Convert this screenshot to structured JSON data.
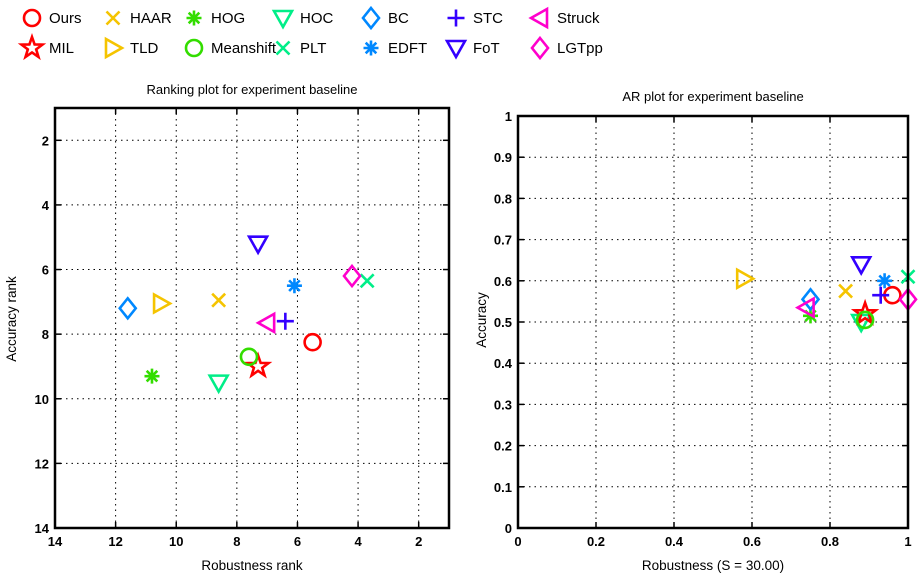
{
  "legend": [
    {
      "name": "Ours",
      "marker": "circle",
      "color": "#ff0000"
    },
    {
      "name": "HAAR",
      "marker": "x",
      "color": "#f5c400"
    },
    {
      "name": "HOG",
      "marker": "asterisk",
      "color": "#33dd00"
    },
    {
      "name": "HOC",
      "marker": "tri-down",
      "color": "#00ee88"
    },
    {
      "name": "BC",
      "marker": "diamond",
      "color": "#0088ff"
    },
    {
      "name": "STC",
      "marker": "plus",
      "color": "#3300ff"
    },
    {
      "name": "Struck",
      "marker": "tri-left",
      "color": "#ff00cc"
    },
    {
      "name": "MIL",
      "marker": "star",
      "color": "#ff0000"
    },
    {
      "name": "TLD",
      "marker": "tri-right",
      "color": "#f5c400"
    },
    {
      "name": "Meanshift",
      "marker": "circle",
      "color": "#33dd00"
    },
    {
      "name": "PLT",
      "marker": "x",
      "color": "#00ee88"
    },
    {
      "name": "EDFT",
      "marker": "asterisk",
      "color": "#0088ff"
    },
    {
      "name": "FoT",
      "marker": "tri-down",
      "color": "#3300ff"
    },
    {
      "name": "LGTpp",
      "marker": "diamond",
      "color": "#ff00cc"
    }
  ],
  "chart_data": [
    {
      "type": "scatter",
      "title": "Ranking plot for experiment baseline",
      "xlabel": "Robustness rank",
      "ylabel": "Accuracy rank",
      "xlim": [
        14,
        1
      ],
      "ylim": [
        14,
        1
      ],
      "x_reversed": true,
      "y_reversed": true,
      "xticks": [
        14,
        12,
        10,
        8,
        6,
        4,
        2
      ],
      "yticks": [
        2,
        4,
        6,
        8,
        10,
        12,
        14
      ],
      "grid": true,
      "series": [
        {
          "name": "Ours",
          "x": 5.5,
          "y": 8.25
        },
        {
          "name": "HAAR",
          "x": 8.6,
          "y": 6.95
        },
        {
          "name": "HOG",
          "x": 10.8,
          "y": 9.3
        },
        {
          "name": "HOC",
          "x": 8.6,
          "y": 9.5
        },
        {
          "name": "BC",
          "x": 11.6,
          "y": 7.2
        },
        {
          "name": "STC",
          "x": 6.4,
          "y": 7.6
        },
        {
          "name": "Struck",
          "x": 7.0,
          "y": 7.65
        },
        {
          "name": "MIL",
          "x": 7.3,
          "y": 9.0
        },
        {
          "name": "TLD",
          "x": 10.5,
          "y": 7.05
        },
        {
          "name": "Meanshift",
          "x": 7.6,
          "y": 8.7
        },
        {
          "name": "PLT",
          "x": 3.7,
          "y": 6.35
        },
        {
          "name": "EDFT",
          "x": 6.1,
          "y": 6.5
        },
        {
          "name": "FoT",
          "x": 7.3,
          "y": 5.2
        },
        {
          "name": "LGTpp",
          "x": 4.2,
          "y": 6.2
        }
      ]
    },
    {
      "type": "scatter",
      "title": "AR plot for experiment baseline",
      "xlabel": "Robustness (S = 30.00)",
      "ylabel": "Accuracy",
      "xlim": [
        0,
        1
      ],
      "ylim": [
        0,
        1
      ],
      "xticks": [
        0,
        0.2,
        0.4,
        0.6,
        0.8,
        1
      ],
      "xtick_labels": [
        "0",
        "0.2",
        "0.4",
        "0.6",
        "0.8",
        "1"
      ],
      "yticks": [
        0,
        0.1,
        0.2,
        0.3,
        0.4,
        0.5,
        0.6,
        0.7,
        0.8,
        0.9,
        1
      ],
      "ytick_labels": [
        "0",
        "0.1",
        "0.2",
        "0.3",
        "0.4",
        "0.5",
        "0.6",
        "0.7",
        "0.8",
        "0.9",
        "1"
      ],
      "grid": true,
      "series": [
        {
          "name": "Ours",
          "x": 0.96,
          "y": 0.565
        },
        {
          "name": "HAAR",
          "x": 0.84,
          "y": 0.575
        },
        {
          "name": "HOG",
          "x": 0.75,
          "y": 0.515
        },
        {
          "name": "HOC",
          "x": 0.88,
          "y": 0.5
        },
        {
          "name": "BC",
          "x": 0.75,
          "y": 0.555
        },
        {
          "name": "STC",
          "x": 0.93,
          "y": 0.565
        },
        {
          "name": "Struck",
          "x": 0.74,
          "y": 0.535
        },
        {
          "name": "MIL",
          "x": 0.89,
          "y": 0.52
        },
        {
          "name": "TLD",
          "x": 0.58,
          "y": 0.605
        },
        {
          "name": "Meanshift",
          "x": 0.89,
          "y": 0.505
        },
        {
          "name": "PLT",
          "x": 1.0,
          "y": 0.61
        },
        {
          "name": "EDFT",
          "x": 0.94,
          "y": 0.6
        },
        {
          "name": "FoT",
          "x": 0.88,
          "y": 0.64
        },
        {
          "name": "LGTpp",
          "x": 1.0,
          "y": 0.555
        }
      ]
    }
  ]
}
